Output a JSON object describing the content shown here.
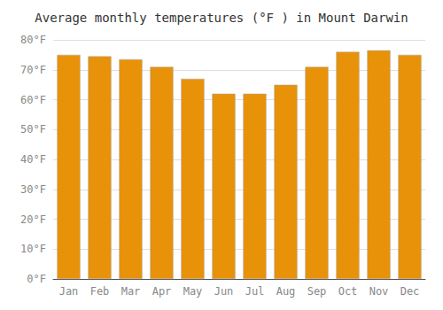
{
  "chart_data": {
    "type": "bar",
    "title": "Average monthly temperatures (°F ) in Mount Darwin",
    "categories": [
      "Jan",
      "Feb",
      "Mar",
      "Apr",
      "May",
      "Jun",
      "Jul",
      "Aug",
      "Sep",
      "Oct",
      "Nov",
      "Dec"
    ],
    "values": [
      75,
      74.5,
      73.5,
      71,
      67,
      62,
      62,
      65,
      71,
      76,
      76.5,
      75
    ],
    "color": "#E8920A",
    "ylim": [
      0,
      80
    ],
    "yticks": [
      {
        "value": 0,
        "label": "0°F"
      },
      {
        "value": 10,
        "label": "10°F"
      },
      {
        "value": 20,
        "label": "20°F"
      },
      {
        "value": 30,
        "label": "30°F"
      },
      {
        "value": 40,
        "label": "40°F"
      },
      {
        "value": 50,
        "label": "50°F"
      },
      {
        "value": 60,
        "label": "60°F"
      },
      {
        "value": 70,
        "label": "70°F"
      },
      {
        "value": 80,
        "label": "80°F"
      }
    ],
    "grid": true
  }
}
